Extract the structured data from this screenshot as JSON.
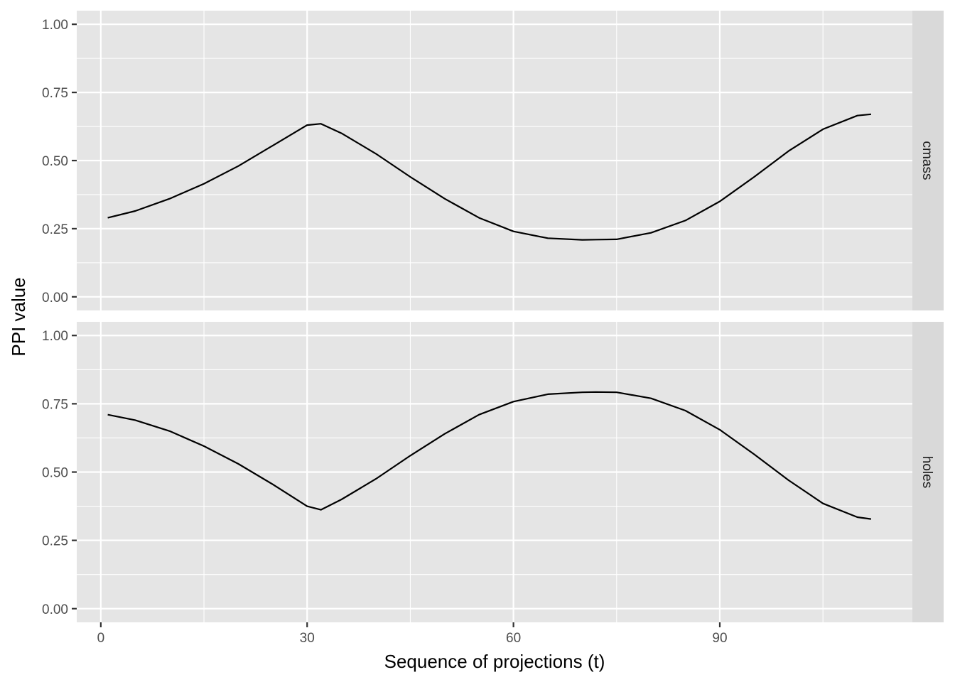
{
  "chart_data": {
    "type": "line",
    "facet": "rows",
    "xlabel": "Sequence of projections (t)",
    "ylabel": "PPI value",
    "xlim": [
      -3.5,
      118
    ],
    "ylim": [
      -0.05,
      1.05
    ],
    "x_ticks": [
      0,
      30,
      60,
      90
    ],
    "x_tick_labels": [
      "0",
      "30",
      "60",
      "90"
    ],
    "x_minor_ticks": [
      15,
      45,
      75,
      105
    ],
    "y_ticks": [
      0,
      0.25,
      0.5,
      0.75,
      1
    ],
    "y_tick_labels": [
      "0.00",
      "0.25",
      "0.50",
      "0.75",
      "1.00"
    ],
    "y_minor_ticks": [
      0.125,
      0.375,
      0.625,
      0.875
    ],
    "grid": true,
    "panels": [
      {
        "strip": "cmass",
        "x": [
          1,
          5,
          10,
          15,
          20,
          25,
          30,
          32,
          35,
          40,
          45,
          50,
          55,
          60,
          65,
          70,
          72,
          75,
          80,
          85,
          90,
          95,
          100,
          105,
          110,
          112
        ],
        "y": [
          0.29,
          0.315,
          0.36,
          0.415,
          0.48,
          0.555,
          0.63,
          0.635,
          0.6,
          0.525,
          0.44,
          0.36,
          0.29,
          0.24,
          0.215,
          0.209,
          0.21,
          0.211,
          0.235,
          0.28,
          0.35,
          0.44,
          0.535,
          0.615,
          0.665,
          0.67
        ]
      },
      {
        "strip": "holes",
        "x": [
          1,
          5,
          10,
          15,
          20,
          25,
          30,
          32,
          35,
          40,
          45,
          50,
          55,
          60,
          65,
          70,
          72,
          75,
          80,
          85,
          90,
          95,
          100,
          105,
          110,
          112
        ],
        "y": [
          0.71,
          0.69,
          0.65,
          0.595,
          0.53,
          0.455,
          0.375,
          0.362,
          0.4,
          0.475,
          0.56,
          0.64,
          0.71,
          0.758,
          0.785,
          0.792,
          0.793,
          0.792,
          0.77,
          0.725,
          0.655,
          0.565,
          0.47,
          0.385,
          0.335,
          0.328
        ]
      }
    ]
  }
}
